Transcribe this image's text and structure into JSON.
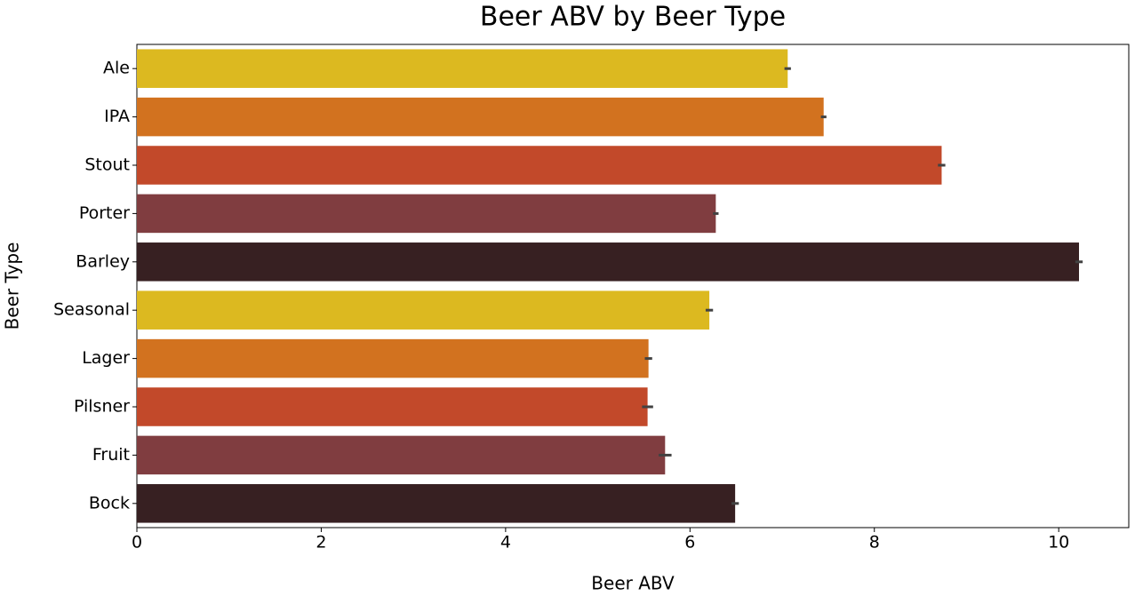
{
  "chart_data": {
    "type": "bar",
    "orientation": "horizontal",
    "title": "Beer ABV by Beer Type",
    "x_label": "Beer ABV",
    "y_label": "Beer Type",
    "categories": [
      "Ale",
      "IPA",
      "Stout",
      "Porter",
      "Barley",
      "Seasonal",
      "Lager",
      "Pilsner",
      "Fruit",
      "Bock"
    ],
    "values": [
      7.06,
      7.45,
      8.73,
      6.28,
      10.22,
      6.21,
      5.55,
      5.54,
      5.73,
      6.49
    ],
    "errors": [
      0.035,
      0.03,
      0.04,
      0.03,
      0.04,
      0.04,
      0.04,
      0.06,
      0.07,
      0.04
    ],
    "colors": [
      "#dcb920",
      "#d2721f",
      "#c2492a",
      "#803d40",
      "#372022",
      "#dcb920",
      "#d2721f",
      "#c2492a",
      "#803d40",
      "#372022"
    ],
    "xlim": [
      0,
      10.76
    ],
    "xticks": [
      0,
      2,
      4,
      6,
      8,
      10
    ],
    "grid": false
  }
}
